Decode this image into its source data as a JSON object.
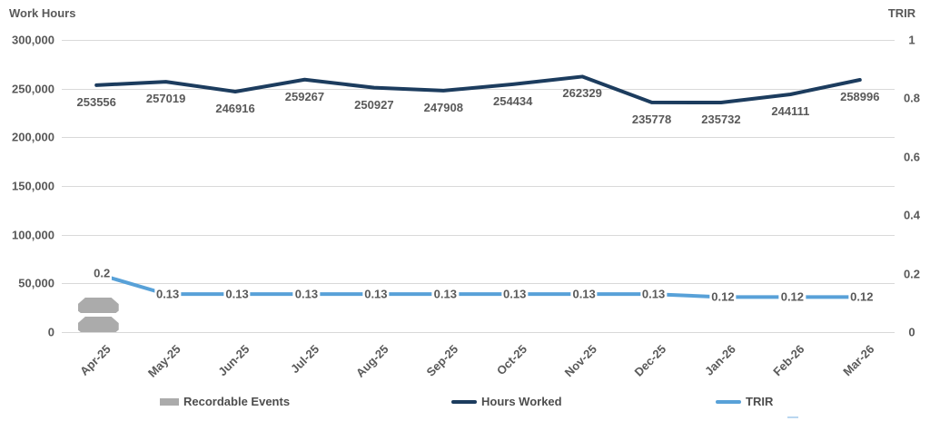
{
  "chart_data": {
    "type": "line",
    "title": "",
    "categories": [
      "Apr-25",
      "May-25",
      "Jun-25",
      "Jul-25",
      "Aug-25",
      "Sep-25",
      "Oct-25",
      "Nov-25",
      "Dec-25",
      "Jan-26",
      "Feb-26",
      "Mar-26"
    ],
    "series": [
      {
        "name": "Recordable Events",
        "kind": "bar",
        "axis": "left",
        "color": "#ABABAB",
        "values": [
          2,
          0,
          0,
          0,
          0,
          0,
          0,
          0,
          0,
          0,
          0,
          0
        ],
        "data_labels": false
      },
      {
        "name": "Hours Worked",
        "kind": "line",
        "axis": "left",
        "color": "#1C3C5E",
        "values": [
          253556,
          257019,
          246916,
          259267,
          250927,
          247908,
          254434,
          262329,
          235778,
          235732,
          244111,
          258996
        ],
        "data_labels": true
      },
      {
        "name": "TRIR",
        "kind": "line",
        "axis": "right",
        "color": "#58A1D8",
        "values": [
          0.2,
          0.13,
          0.13,
          0.13,
          0.13,
          0.13,
          0.13,
          0.13,
          0.13,
          0.12,
          0.12,
          0.12
        ],
        "data_labels": true
      }
    ],
    "left_axis": {
      "title": "Work Hours",
      "min": 0,
      "max": 300000,
      "step": 50000,
      "tick_labels": [
        "0",
        "50,000",
        "100,000",
        "150,000",
        "200,000",
        "250,000",
        "300,000"
      ]
    },
    "right_axis": {
      "title": "TRIR",
      "min": 0,
      "max": 1,
      "step": 0.2,
      "tick_labels": [
        "0",
        "0.2",
        "0.4",
        "0.6",
        "0.8",
        "1"
      ]
    },
    "grid": true,
    "legend_position": "bottom",
    "text_color": "#595959",
    "gridline_color": "#D9D9D9"
  }
}
